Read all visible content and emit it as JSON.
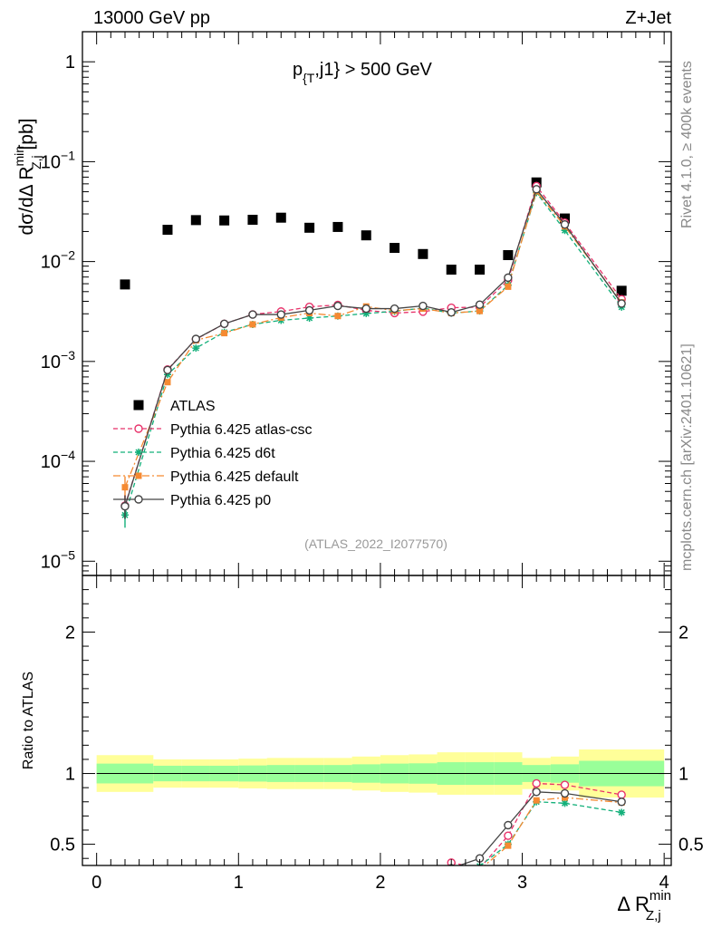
{
  "header": {
    "left": "13000 GeV pp",
    "right": "Z+Jet",
    "cut_main": "p",
    "cut_sub": "{T",
    "cut_rest": ",j1} > 500 GeV",
    "analysis": "(ATLAS_2022_I2077570)",
    "rivet": "Rivet 4.1.0, ≥ 400k events",
    "mcplots": "mcplots.cern.ch [arXiv:2401.10621]"
  },
  "axes": {
    "ylabel_main": "dσ/dΔ R",
    "ylabel_sup": "min",
    "ylabel_sub": "Z,j",
    "ylabel_unit": " [pb]",
    "ylabel_ratio": "Ratio to ATLAS",
    "xlabel_main": "Δ R",
    "xlabel_sup": "min",
    "xlabel_sub": "Z,j"
  },
  "colors": {
    "atlas": "#000000",
    "atlas_csc": "#e8336b",
    "d6t": "#13b07a",
    "default": "#f58a32",
    "p0": "#444444",
    "band_inner": "#99ff99",
    "band_outer": "#ffff99"
  },
  "chart_data": [
    {
      "type": "scatter",
      "panel": "main",
      "title": "p_{T},j1} > 500 GeV",
      "xlabel": "Δ R min Z,j",
      "ylabel": "dσ/dΔ R min Z,j [pb]",
      "yscale": "log",
      "xlim": [
        -0.1,
        4.05
      ],
      "ylim": [
        7.2e-06,
        2.0
      ],
      "yticks": [
        {
          "v": 1e-05,
          "base": "10",
          "exp": "−5"
        },
        {
          "v": 0.0001,
          "base": "10",
          "exp": "−4"
        },
        {
          "v": 0.001,
          "base": "10",
          "exp": "−3"
        },
        {
          "v": 0.01,
          "base": "10",
          "exp": "−2"
        },
        {
          "v": 0.1,
          "base": "10",
          "exp": "−1"
        },
        {
          "v": 1,
          "base": "1",
          "exp": ""
        }
      ],
      "legend_position": "left",
      "x": [
        0.2,
        0.5,
        0.7,
        0.9,
        1.1,
        1.3,
        1.5,
        1.7,
        1.9,
        2.1,
        2.3,
        2.5,
        2.7,
        2.9,
        3.1,
        3.3,
        3.7
      ],
      "series": [
        {
          "name": "ATLAS",
          "key": "atlas",
          "style": "data",
          "values": [
            0.0059,
            0.0208,
            0.026,
            0.0258,
            0.0262,
            0.0275,
            0.0218,
            0.0222,
            0.0183,
            0.0137,
            0.0119,
            0.0083,
            0.0083,
            0.0116,
            0.062,
            0.027,
            0.0051
          ]
        },
        {
          "name": "Pythia 6.425 atlas-csc",
          "key": "atlas_csc",
          "style": "circle",
          "dash": "5,3",
          "values": [
            3.6e-05,
            0.00083,
            0.00167,
            0.00238,
            0.00296,
            0.00316,
            0.00352,
            0.00368,
            0.00325,
            0.00305,
            0.00315,
            0.00345,
            0.0035,
            0.0065,
            0.057,
            0.0245,
            0.0042
          ]
        },
        {
          "name": "Pythia 6.425 d6t",
          "key": "d6t",
          "style": "star",
          "dash": "5,3",
          "values": [
            2.9e-05,
            0.00074,
            0.00136,
            0.00196,
            0.00235,
            0.00258,
            0.00272,
            0.00285,
            0.00302,
            0.00318,
            0.00342,
            0.00305,
            0.0032,
            0.0058,
            0.049,
            0.0205,
            0.0035
          ]
        },
        {
          "name": "Pythia 6.425 default",
          "key": "default",
          "style": "square",
          "dash": "8,3,2,3",
          "values": [
            5.5e-05,
            0.00062,
            0.00163,
            0.00192,
            0.00235,
            0.00275,
            0.00305,
            0.00285,
            0.00355,
            0.00322,
            0.00338,
            0.00305,
            0.0032,
            0.0056,
            0.0505,
            0.0225,
            0.0039
          ]
        },
        {
          "name": "Pythia 6.425 p0",
          "key": "p0",
          "style": "open",
          "dash": "",
          "values": [
            3.55e-05,
            0.00082,
            0.00168,
            0.00238,
            0.00295,
            0.00295,
            0.00325,
            0.0036,
            0.00338,
            0.00338,
            0.0036,
            0.0031,
            0.0037,
            0.0069,
            0.053,
            0.0235,
            0.0038
          ]
        }
      ]
    },
    {
      "type": "line",
      "panel": "ratio",
      "ylabel": "Ratio to ATLAS",
      "xlabel": "Δ R min Z,j",
      "xlim": [
        -0.1,
        4.05
      ],
      "ylim": [
        0.35,
        2.4
      ],
      "yticks": [
        0.5,
        1,
        2
      ],
      "xticks": [
        0,
        1,
        2,
        3,
        4
      ],
      "ytick_labels": [
        "0.5",
        "1",
        "2"
      ],
      "xtick_labels": [
        "0",
        "1",
        "2",
        "3",
        "4"
      ],
      "band_edges": [
        0,
        0.4,
        0.6,
        0.8,
        1.0,
        1.2,
        1.4,
        1.6,
        1.8,
        2.0,
        2.2,
        2.4,
        2.6,
        2.8,
        3.0,
        3.2,
        3.4,
        4.0
      ],
      "band_inner": [
        0.07,
        0.055,
        0.055,
        0.055,
        0.057,
        0.06,
        0.06,
        0.06,
        0.065,
        0.07,
        0.072,
        0.08,
        0.08,
        0.08,
        0.06,
        0.065,
        0.09
      ],
      "band_outer": [
        0.13,
        0.1,
        0.1,
        0.1,
        0.105,
        0.11,
        0.11,
        0.11,
        0.12,
        0.13,
        0.135,
        0.15,
        0.15,
        0.15,
        0.11,
        0.12,
        0.17
      ],
      "series": [
        {
          "name": "Pythia 6.425 atlas-csc",
          "key": "atlas_csc",
          "style": "circle",
          "dash": "5,3",
          "x": [
            2.5,
            2.7,
            2.9,
            3.1,
            3.3,
            3.7
          ],
          "values": [
            0.37,
            0.33,
            0.56,
            0.93,
            0.92,
            0.85
          ]
        },
        {
          "name": "Pythia 6.425 d6t",
          "key": "d6t",
          "style": "star",
          "dash": "5,3",
          "x": [
            2.7,
            2.9,
            3.1,
            3.3,
            3.7
          ],
          "values": [
            0.345,
            0.5,
            0.8,
            0.79,
            0.725
          ]
        },
        {
          "name": "Pythia 6.425 default",
          "key": "default",
          "style": "square",
          "dash": "8,3,2,3",
          "x": [
            2.7,
            2.9,
            3.1,
            3.3,
            3.7
          ],
          "values": [
            0.32,
            0.49,
            0.81,
            0.83,
            0.795
          ]
        },
        {
          "name": "Pythia 6.425 p0",
          "key": "p0",
          "style": "open",
          "dash": "",
          "x": [
            2.5,
            2.7,
            2.9,
            3.1,
            3.3,
            3.7
          ],
          "values": [
            0.33,
            0.4,
            0.635,
            0.87,
            0.86,
            0.8
          ]
        }
      ]
    }
  ]
}
